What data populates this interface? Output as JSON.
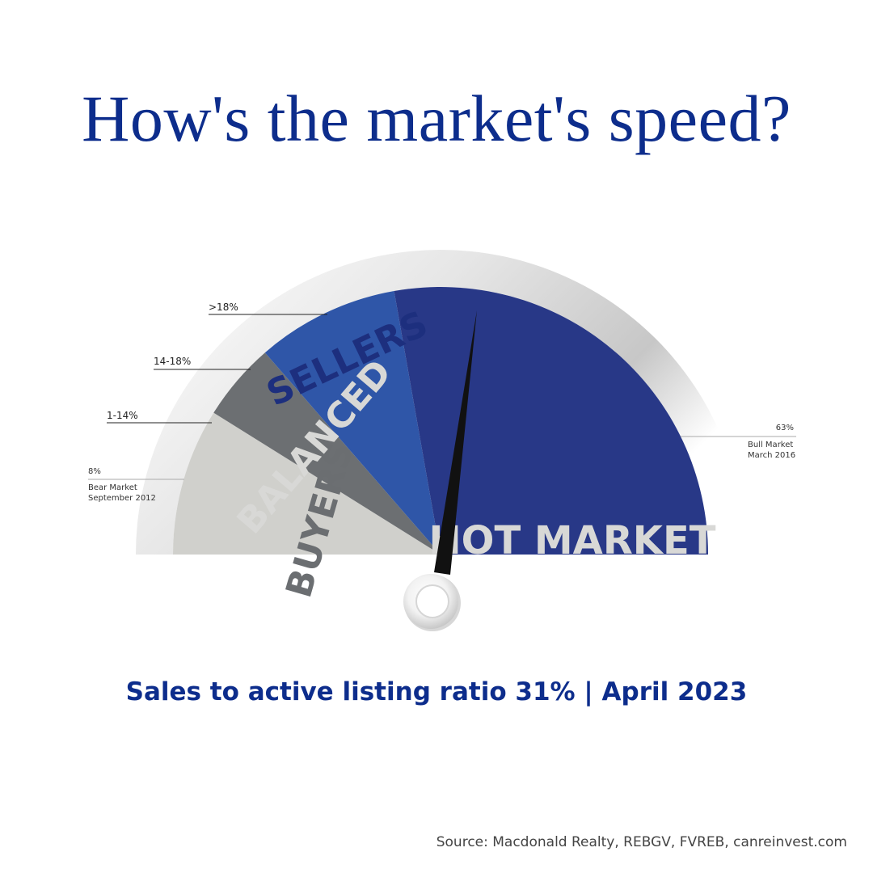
{
  "title": "How's the market's speed?",
  "subtitle": "Sales to active listing ratio 31% | April 2023",
  "source": "Source: Macdonald Realty, REBGV, FVREB, canreinvest.com",
  "colors": {
    "title": "#0d2d8c",
    "buyers": "#d0d0cc",
    "balanced": "#6c6f72",
    "sellers": "#2f56a8",
    "hot_market": "#283887",
    "needle": "#111111"
  },
  "chart_data": {
    "type": "gauge",
    "title": "How's the market's speed?",
    "current_value": 31,
    "current_label": "Sales to active listing ratio 31% | April 2023",
    "range": [
      0,
      63
    ],
    "zones": [
      {
        "name": "BUYERS",
        "from": 0,
        "to": 14,
        "color": "#d0d0cc"
      },
      {
        "name": "BALANCED",
        "from": 14,
        "to": 18,
        "color": "#6c6f72"
      },
      {
        "name": "SELLERS",
        "from": 18,
        "to": 26,
        "color": "#2f56a8"
      },
      {
        "name": "HOT MARKET",
        "from": 26,
        "to": 63,
        "color": "#283887"
      }
    ],
    "boundary_labels": [
      {
        "text": "1-14%"
      },
      {
        "text": "14-18%"
      },
      {
        "text": ">18%"
      }
    ],
    "annotations": [
      {
        "value": "8%",
        "lines": [
          "Bear Market",
          "September 2012"
        ]
      },
      {
        "value": "63%",
        "lines": [
          "Bull Market",
          "March 2016"
        ]
      }
    ]
  }
}
